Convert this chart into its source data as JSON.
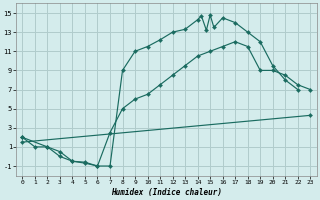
{
  "xlabel": "Humidex (Indice chaleur)",
  "bg_color": "#d4ecec",
  "grid_color": "#b0cccc",
  "line_color": "#1a6b60",
  "xlim": [
    -0.5,
    23.5
  ],
  "ylim": [
    -2.0,
    16.0
  ],
  "xticks": [
    0,
    1,
    2,
    3,
    4,
    5,
    6,
    7,
    8,
    9,
    10,
    11,
    12,
    13,
    14,
    15,
    16,
    17,
    18,
    19,
    20,
    21,
    22,
    23
  ],
  "yticks": [
    -1,
    1,
    3,
    5,
    7,
    9,
    11,
    13,
    15
  ],
  "curve1_x": [
    0,
    1,
    2,
    3,
    4,
    5,
    6,
    7,
    8,
    9,
    10,
    11,
    12,
    13,
    14,
    14.3,
    14.7,
    15,
    15.3,
    16,
    17,
    18,
    19,
    20,
    21,
    22
  ],
  "curve1_y": [
    2,
    1,
    1,
    0,
    -0.5,
    -0.6,
    -1,
    -1,
    9,
    11,
    11.5,
    12.2,
    13.0,
    13.3,
    14.3,
    14.7,
    13.2,
    14.8,
    13.5,
    14.5,
    14.0,
    13.0,
    12,
    9.5,
    8,
    7
  ],
  "curve2_x": [
    0,
    2,
    3,
    4,
    5,
    6,
    7,
    8,
    9,
    10,
    11,
    12,
    13,
    14,
    15,
    16,
    17,
    18,
    19,
    20,
    21,
    22,
    23
  ],
  "curve2_y": [
    2,
    1,
    0.5,
    -0.5,
    -0.7,
    -1,
    2.5,
    5,
    6,
    6.5,
    7.5,
    8.5,
    9.5,
    10.5,
    11,
    11.5,
    12,
    11.5,
    9,
    9,
    8.5,
    7.5,
    7
  ],
  "curve3_x": [
    0,
    23
  ],
  "curve3_y": [
    1.5,
    4.3
  ]
}
